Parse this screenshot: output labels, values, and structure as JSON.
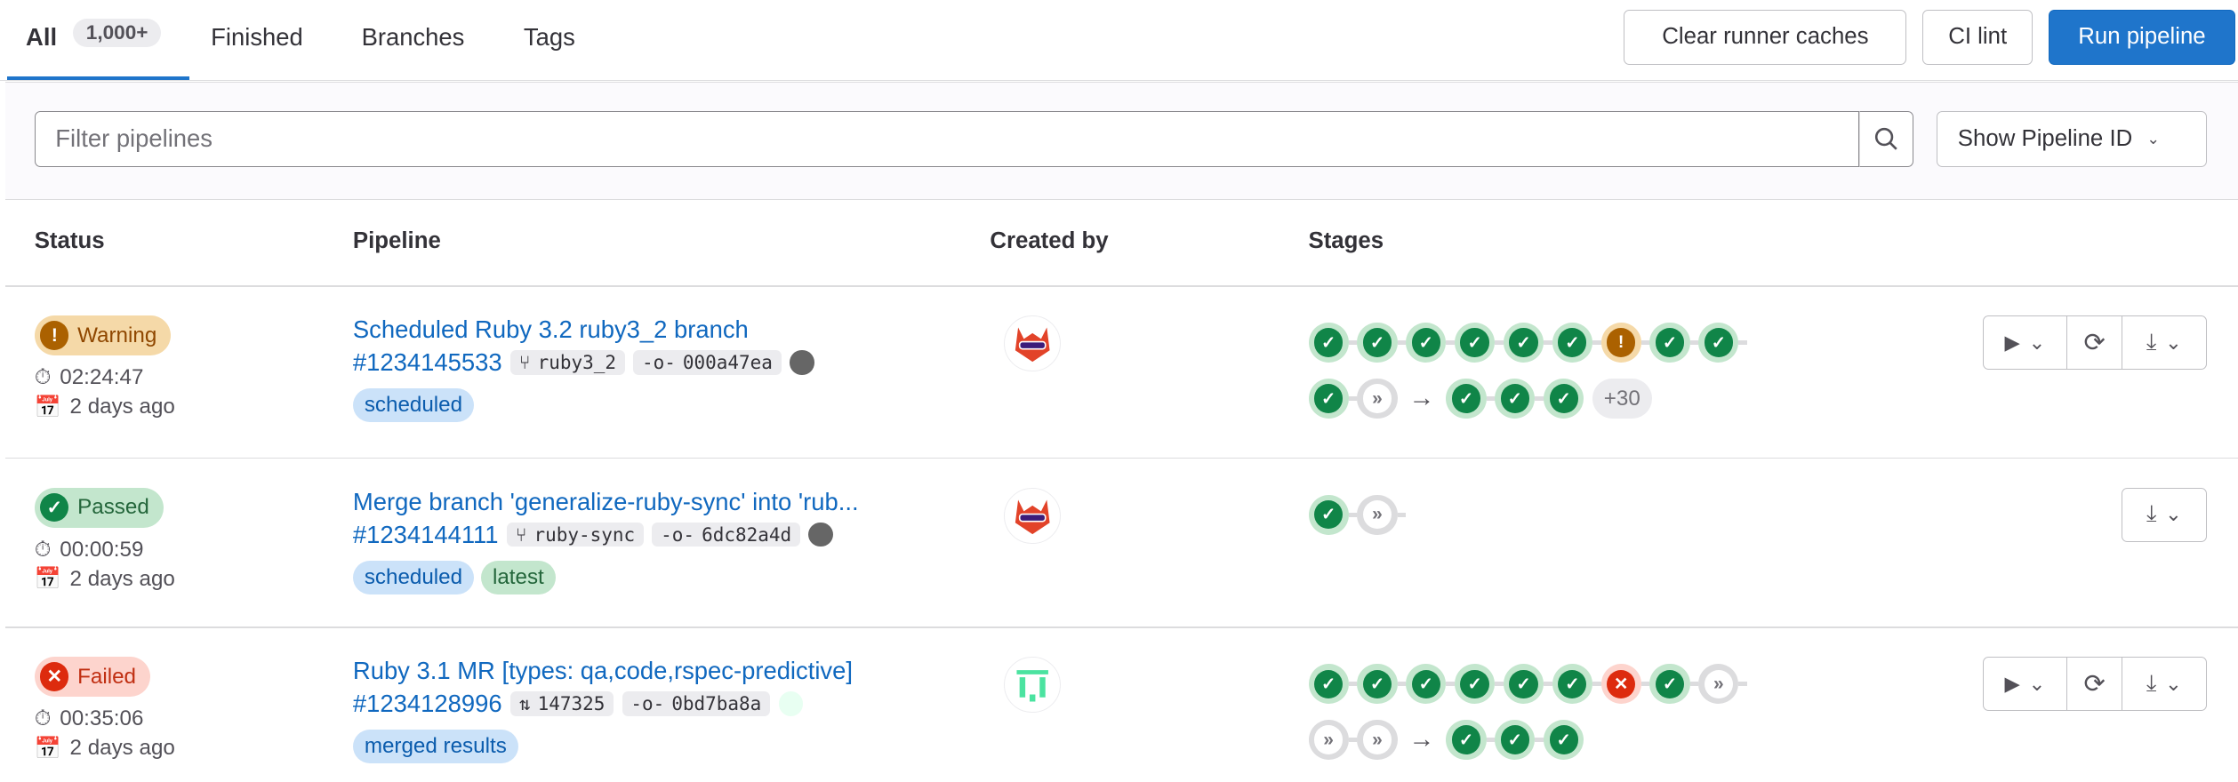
{
  "tabs": [
    {
      "label": "All",
      "count": "1,000+",
      "active": true
    },
    {
      "label": "Finished"
    },
    {
      "label": "Branches"
    },
    {
      "label": "Tags"
    }
  ],
  "toolbar": {
    "clear_caches": "Clear runner caches",
    "ci_lint": "CI lint",
    "run_pipeline": "Run pipeline"
  },
  "filter": {
    "placeholder": "Filter pipelines",
    "dropdown": "Show Pipeline ID"
  },
  "columns": [
    "Status",
    "Pipeline",
    "Created by",
    "Stages"
  ],
  "rows": [
    {
      "status": "Warning",
      "duration": "02:24:47",
      "finished": "2 days ago",
      "title": "Scheduled Ruby 3.2 ruby3_2 branch",
      "id": "#1234145533",
      "ref": "ruby3_2",
      "ref_icon": "branch-icon",
      "sha": "000a47ea",
      "tags": [
        "scheduled"
      ],
      "stages_row1": [
        "success",
        "success",
        "success",
        "success",
        "success",
        "success",
        "warning",
        "success",
        "success"
      ],
      "stages_row2_before": [
        "success",
        "skipped"
      ],
      "stages_row2_after": [
        "success",
        "success",
        "success"
      ],
      "more": "+30",
      "actions": [
        "play",
        "retry",
        "download"
      ]
    },
    {
      "status": "Passed",
      "duration": "00:00:59",
      "finished": "2 days ago",
      "title": "Merge branch 'generalize-ruby-sync' into 'rub...",
      "id": "#1234144111",
      "ref": "ruby-sync",
      "ref_icon": "branch-icon",
      "sha": "6dc82a4d",
      "tags": [
        "scheduled",
        "latest"
      ],
      "stages_row1": [
        "success",
        "skipped"
      ],
      "actions": [
        "download"
      ]
    },
    {
      "status": "Failed",
      "duration": "00:35:06",
      "finished": "2 days ago",
      "title": "Ruby 3.1 MR [types: qa,code,rspec-predictive]",
      "id": "#1234128996",
      "ref": "147325",
      "ref_icon": "merge-request-icon",
      "sha": "0bd7ba8a",
      "tags": [
        "merged results"
      ],
      "stages_row1": [
        "success",
        "success",
        "success",
        "success",
        "success",
        "success",
        "failed",
        "success",
        "skipped"
      ],
      "stages_row2_before": [
        "skipped",
        "skipped"
      ],
      "stages_row2_after": [
        "success",
        "success",
        "success"
      ],
      "actions": [
        "play",
        "retry",
        "download"
      ]
    }
  ],
  "colors": {
    "accent": "#1f75cb",
    "success": "#108548",
    "warning": "#ab6100",
    "failed": "#dd2b0e"
  }
}
